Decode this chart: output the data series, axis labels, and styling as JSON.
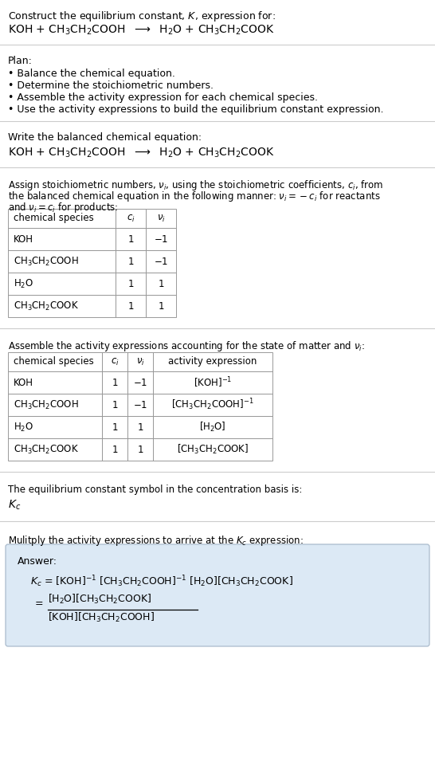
{
  "title_line1": "Construct the equilibrium constant, $K$, expression for:",
  "title_line2": "KOH + CH$_3$CH$_2$COOH  $\\longrightarrow$  H$_2$O + CH$_3$CH$_2$COOK",
  "plan_header": "Plan:",
  "plan_items": [
    "• Balance the chemical equation.",
    "• Determine the stoichiometric numbers.",
    "• Assemble the activity expression for each chemical species.",
    "• Use the activity expressions to build the equilibrium constant expression."
  ],
  "balanced_header": "Write the balanced chemical equation:",
  "balanced_eq": "KOH + CH$_3$CH$_2$COOH  $\\longrightarrow$  H$_2$O + CH$_3$CH$_2$COOK",
  "stoich_header1": "Assign stoichiometric numbers, $\\nu_i$, using the stoichiometric coefficients, $c_i$, from",
  "stoich_header2": "the balanced chemical equation in the following manner: $\\nu_i = -c_i$ for reactants",
  "stoich_header3": "and $\\nu_i = c_i$ for products:",
  "table1_cols": [
    "chemical species",
    "$c_i$",
    "$\\nu_i$"
  ],
  "table1_rows": [
    [
      "KOH",
      "1",
      "$-1$"
    ],
    [
      "CH$_3$CH$_2$COOH",
      "1",
      "$-1$"
    ],
    [
      "H$_2$O",
      "1",
      "1"
    ],
    [
      "CH$_3$CH$_2$COOK",
      "1",
      "1"
    ]
  ],
  "activity_header": "Assemble the activity expressions accounting for the state of matter and $\\nu_i$:",
  "table2_cols": [
    "chemical species",
    "$c_i$",
    "$\\nu_i$",
    "activity expression"
  ],
  "table2_rows": [
    [
      "KOH",
      "1",
      "$-1$",
      "[KOH]$^{-1}$"
    ],
    [
      "CH$_3$CH$_2$COOH",
      "1",
      "$-1$",
      "[CH$_3$CH$_2$COOH]$^{-1}$"
    ],
    [
      "H$_2$O",
      "1",
      "1",
      "[H$_2$O]"
    ],
    [
      "CH$_3$CH$_2$COOK",
      "1",
      "1",
      "[CH$_3$CH$_2$COOK]"
    ]
  ],
  "kc_header": "The equilibrium constant symbol in the concentration basis is:",
  "kc_symbol": "$K_c$",
  "multiply_header": "Mulitply the activity expressions to arrive at the $K_c$ expression:",
  "bg_color": "#ffffff",
  "text_color": "#000000",
  "table_border_color": "#999999",
  "answer_bg_color": "#dce9f5",
  "sep_color": "#cccccc"
}
